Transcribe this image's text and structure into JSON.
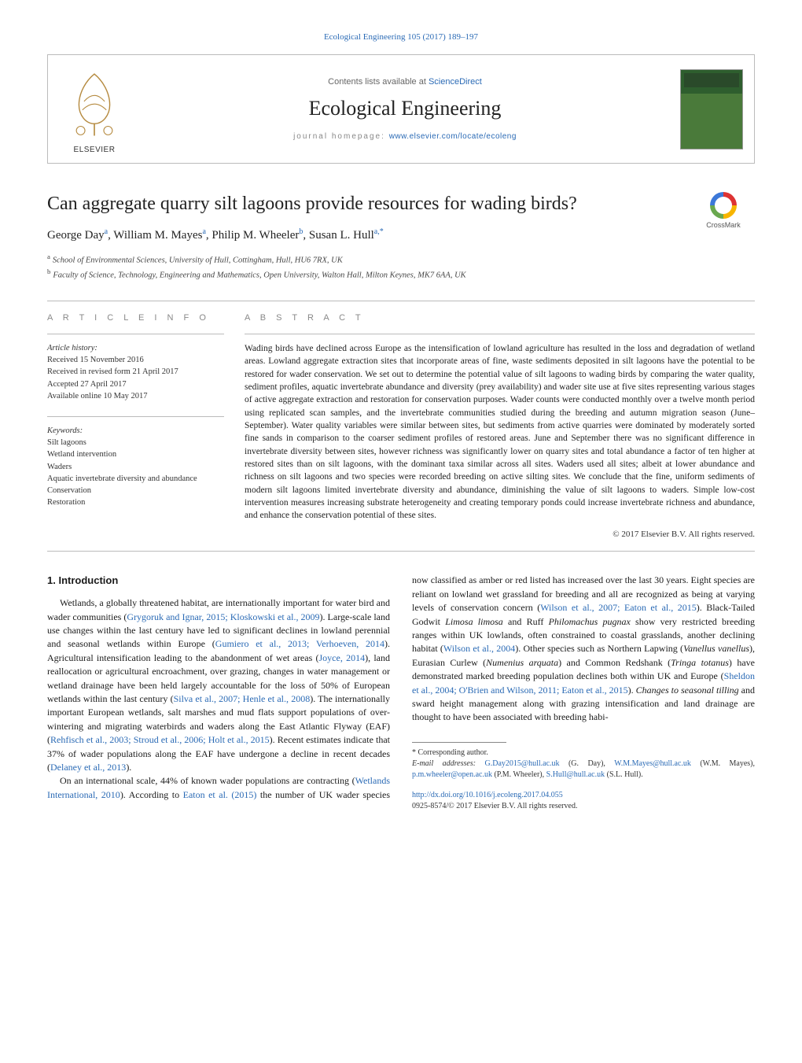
{
  "journal_ref": "Ecological Engineering 105 (2017) 189–197",
  "header": {
    "publisher": "ELSEVIER",
    "contents_prefix": "Contents lists available at ",
    "contents_link": "ScienceDirect",
    "journal": "Ecological Engineering",
    "homepage_prefix": "journal homepage: ",
    "homepage_link": "www.elsevier.com/locate/ecoleng"
  },
  "crossmark": "CrossMark",
  "title": "Can aggregate quarry silt lagoons provide resources for wading birds?",
  "authors_html": "George Day<sup>a</sup>, William M. Mayes<sup>a</sup>, Philip M. Wheeler<sup>b</sup>, Susan L. Hull<sup>a,*</sup>",
  "affiliations": {
    "a": "School of Environmental Sciences, University of Hull, Cottingham, Hull, HU6 7RX, UK",
    "b": "Faculty of Science, Technology, Engineering and Mathematics, Open University, Walton Hall, Milton Keynes, MK7 6AA, UK"
  },
  "info_head": "A R T I C L E   I N F O",
  "abs_head": "A B S T R A C T",
  "history": {
    "title": "Article history:",
    "lines": [
      "Received 15 November 2016",
      "Received in revised form 21 April 2017",
      "Accepted 27 April 2017",
      "Available online 10 May 2017"
    ]
  },
  "keywords": {
    "title": "Keywords:",
    "items": [
      "Silt lagoons",
      "Wetland intervention",
      "Waders",
      "Aquatic invertebrate diversity and abundance",
      "Conservation",
      "Restoration"
    ]
  },
  "abstract": "Wading birds have declined across Europe as the intensification of lowland agriculture has resulted in the loss and degradation of wetland areas. Lowland aggregate extraction sites that incorporate areas of fine, waste sediments deposited in silt lagoons have the potential to be restored for wader conservation. We set out to determine the potential value of silt lagoons to wading birds by comparing the water quality, sediment profiles, aquatic invertebrate abundance and diversity (prey availability) and wader site use at five sites representing various stages of active aggregate extraction and restoration for conservation purposes. Wader counts were conducted monthly over a twelve month period using replicated scan samples, and the invertebrate communities studied during the breeding and autumn migration season (June–September). Water quality variables were similar between sites, but sediments from active quarries were dominated by moderately sorted fine sands in comparison to the coarser sediment profiles of restored areas. June and September there was no significant difference in invertebrate diversity between sites, however richness was significantly lower on quarry sites and total abundance a factor of ten higher at restored sites than on silt lagoons, with the dominant taxa similar across all sites. Waders used all sites; albeit at lower abundance and richness on silt lagoons and two species were recorded breeding on active silting sites. We conclude that the fine, uniform sediments of modern silt lagoons limited invertebrate diversity and abundance, diminishing the value of silt lagoons to waders. Simple low-cost intervention measures increasing substrate heterogeneity and creating temporary ponds could increase invertebrate richness and abundance, and enhance the conservation potential of these sites.",
  "copyright": "© 2017 Elsevier B.V. All rights reserved.",
  "intro_head": "1.  Introduction",
  "intro_p1_pre": "Wetlands, a globally threatened habitat, are internationally important for water bird and wader communities (",
  "intro_p1_cite1": "Grygoruk and Ignar, 2015; Kloskowski et al., 2009",
  "intro_p1_mid1": "). Large-scale land use changes within the last century have led to significant declines in lowland perennial and seasonal wetlands within Europe (",
  "intro_p1_cite2": "Gumiero et al., 2013; Verhoeven, 2014",
  "intro_p1_mid2": "). Agricultural intensification leading to the abandonment of wet areas (",
  "intro_p1_cite3": "Joyce, 2014",
  "intro_p1_mid3": "), land reallocation or agricultural encroachment, over grazing, changes in water management or wetland drainage have been held largely accountable for the loss of 50% of European wetlands within the last century (",
  "intro_p1_cite4": "Silva et al., 2007; Henle et al., 2008",
  "intro_p1_mid4": "). The internationally important European wetlands, salt marshes and mud flats support populations of over-wintering and migrating waterbirds and waders along the East Atlantic Flyway (EAF) (",
  "intro_p1_cite5": "Rehfisch et al., 2003; Stroud et al., 2006; Holt et al., 2015",
  "intro_p1_mid5": "). Recent estimates indicate that 37% of wader populations along the EAF have undergone a decline in recent decades (",
  "intro_p1_cite6": "Delaney et al., 2013",
  "intro_p1_end": ").",
  "intro_p2_pre": "On an international scale, 44% of known wader populations are contracting (",
  "intro_p2_cite1": "Wetlands International, 2010",
  "intro_p2_mid1": "). According to ",
  "intro_p2_cite2": "Eaton et al. (2015)",
  "intro_p2_mid2": " the number of UK wader species now classified as amber or red listed has increased over the last 30 years. Eight species are reliant on lowland wet grassland for breeding and all are recognized as being at varying levels of conservation concern (",
  "intro_p2_cite3": "Wilson et al., 2007; Eaton et al., 2015",
  "intro_p2_mid3": "). Black-Tailed Godwit ",
  "intro_p2_sp1": "Limosa limosa",
  "intro_p2_mid4": " and Ruff ",
  "intro_p2_sp2": "Philomachus pugnax",
  "intro_p2_mid5": " show very restricted breeding ranges within UK lowlands, often constrained to coastal grasslands, another declining habitat (",
  "intro_p2_cite4": "Wilson et al., 2004",
  "intro_p2_mid6": "). Other species such as Northern Lapwing (",
  "intro_p2_sp3": "Vanellus vanellus",
  "intro_p2_mid7": "), Eurasian Curlew (",
  "intro_p2_sp4": "Numenius arquata",
  "intro_p2_mid8": ") and Common Redshank (",
  "intro_p2_sp5": "Tringa totanus",
  "intro_p2_mid9": ") have demonstrated marked breeding population declines both within UK and Europe (",
  "intro_p2_cite5": "Sheldon et al., 2004; O'Brien and Wilson, 2011; Eaton et al., 2015",
  "intro_p2_mid10": "). ",
  "intro_p2_em1": "Changes to seasonal tilling",
  "intro_p2_end": " and sward height management along with grazing intensification and land drainage are thought to have been associated with breeding habi-",
  "footnotes": {
    "corr": "Corresponding author.",
    "email_label": "E-mail addresses:",
    "e1": "G.Day2015@hull.ac.uk",
    "n1": " (G. Day), ",
    "e2": "W.M.Mayes@hull.ac.uk",
    "n2": " (W.M. Mayes), ",
    "e3": "p.m.wheeler@open.ac.uk",
    "n3": " (P.M. Wheeler), ",
    "e4": "S.Hull@hull.ac.uk",
    "n4": " (S.L. Hull)."
  },
  "doi": "http://dx.doi.org/10.1016/j.ecoleng.2017.04.055",
  "issn_line": "0925-8574/© 2017 Elsevier B.V. All rights reserved.",
  "colors": {
    "link": "#2a6ab5",
    "text": "#1a1a1a",
    "muted": "#888888",
    "rule": "#bbbbbb"
  }
}
